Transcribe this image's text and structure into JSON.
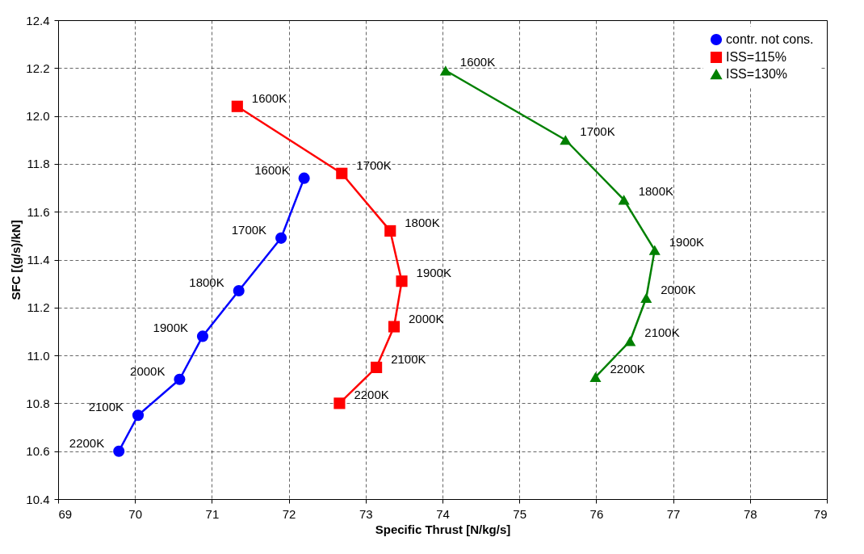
{
  "chart_data": {
    "type": "line",
    "xlabel": "Specific Thrust [N/kg/s]",
    "ylabel": "SFC [(g/s)/kN]",
    "xlim": [
      69,
      79
    ],
    "xticks": [
      69,
      70,
      71,
      72,
      73,
      74,
      75,
      76,
      77,
      78,
      79
    ],
    "ylim": [
      10.4,
      12.4
    ],
    "yticks": [
      10.4,
      10.6,
      10.8,
      {
        "value": 11,
        "label": "11.0"
      },
      11.2,
      11.4,
      11.6,
      11.8,
      {
        "value": 12,
        "label": "12.0"
      },
      12.2,
      12.4
    ],
    "grid": true,
    "legend": "top right",
    "line_style": "solid",
    "series": [
      {
        "name": "contr. not cons.",
        "color": "#0000ff",
        "marker": "circle",
        "x": [
          69.79,
          70.04,
          70.58,
          70.88,
          71.35,
          71.9,
          72.2
        ],
        "values": [
          10.6,
          10.75,
          10.9,
          11.08,
          11.27,
          11.49,
          11.74
        ]
      },
      {
        "name": "ISS=115%",
        "color": "#ff0000",
        "marker": "square",
        "x": [
          71.33,
          72.69,
          73.32,
          73.47,
          73.37,
          73.14,
          72.66
        ],
        "values": [
          12.04,
          11.76,
          11.52,
          11.31,
          11.12,
          10.95,
          10.8
        ]
      },
      {
        "name": "ISS=130%",
        "color": "#008000",
        "marker": "triangle",
        "x": [
          74.04,
          75.6,
          76.36,
          76.76,
          76.65,
          76.44,
          75.99
        ],
        "values": [
          12.19,
          11.9,
          11.65,
          11.44,
          11.24,
          11.06,
          10.91
        ]
      }
    ],
    "annotations": [
      {
        "text": "2200K",
        "x": 69.79,
        "y": 10.6
      },
      {
        "text": "2100K",
        "x": 70.04,
        "y": 10.75
      },
      {
        "text": "2000K",
        "x": 70.58,
        "y": 10.9
      },
      {
        "text": "1900K",
        "x": 70.88,
        "y": 11.08
      },
      {
        "text": "1800K",
        "x": 71.35,
        "y": 11.27
      },
      {
        "text": "1700K",
        "x": 71.9,
        "y": 11.49
      },
      {
        "text": "1600K",
        "x": 72.2,
        "y": 11.74
      },
      {
        "text": "1600K",
        "x": 71.33,
        "y": 12.04
      },
      {
        "text": "1700K",
        "x": 72.69,
        "y": 11.76
      },
      {
        "text": "1800K",
        "x": 73.32,
        "y": 11.52
      },
      {
        "text": "1900K",
        "x": 73.47,
        "y": 11.31
      },
      {
        "text": "2000K",
        "x": 73.37,
        "y": 11.12
      },
      {
        "text": "2100K",
        "x": 73.14,
        "y": 10.95
      },
      {
        "text": "2200K",
        "x": 72.66,
        "y": 10.8
      },
      {
        "text": "1600K",
        "x": 74.04,
        "y": 12.19
      },
      {
        "text": "1700K",
        "x": 75.6,
        "y": 11.9
      },
      {
        "text": "1800K",
        "x": 76.36,
        "y": 11.65
      },
      {
        "text": "1900K",
        "x": 76.76,
        "y": 11.44
      },
      {
        "text": "2000K",
        "x": 76.65,
        "y": 11.24
      },
      {
        "text": "2100K",
        "x": 76.44,
        "y": 11.06
      },
      {
        "text": "2200K",
        "x": 75.99,
        "y": 10.91
      }
    ]
  }
}
